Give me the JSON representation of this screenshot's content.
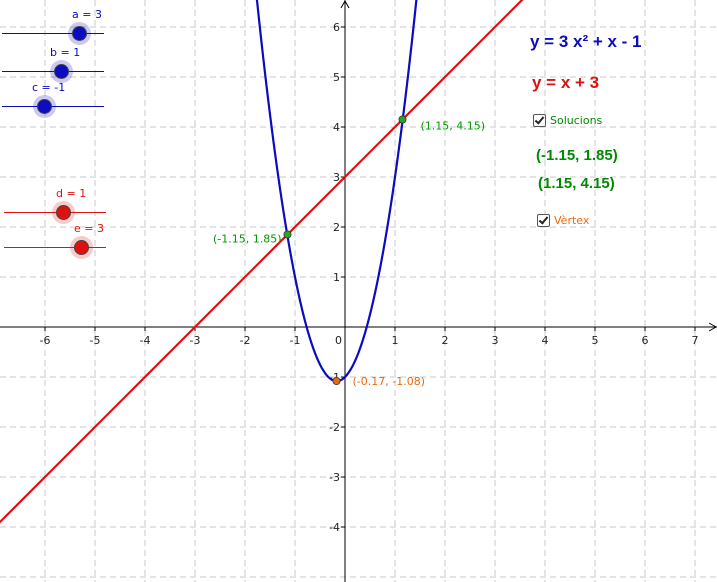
{
  "colors": {
    "blue": "#0b0bbf",
    "red": "#dd1111",
    "green": "#009900",
    "orange": "#e86a10",
    "grid": "#c8c8c8",
    "axis": "#000000"
  },
  "sliders": [
    {
      "label": "a = 3",
      "value": 3,
      "min": -5,
      "max": 5,
      "color": "blue"
    },
    {
      "label": "b = 1",
      "value": 1,
      "min": -5,
      "max": 5,
      "color": "blue"
    },
    {
      "label": "c = -1",
      "value": -1,
      "min": -5,
      "max": 5,
      "color": "blue"
    },
    {
      "label": "d = 1",
      "value": 1,
      "min": -5,
      "max": 5,
      "color": "red"
    },
    {
      "label": "e = 3",
      "value": 3,
      "min": -5,
      "max": 5,
      "color": "red"
    }
  ],
  "equations": {
    "parabola": "y = 3 x² + x - 1",
    "line": "y = x + 3"
  },
  "checkboxes": {
    "solutions": {
      "label": "Solucions",
      "checked": true
    },
    "vertex": {
      "label": "Vèrtex",
      "checked": true
    }
  },
  "solutions": [
    "(-1.15, 1.85)",
    "(1.15, 4.15)"
  ],
  "points": {
    "left_intersection": {
      "x": -1.15,
      "y": 1.85,
      "label": "(-1.15, 1.85)"
    },
    "right_intersection": {
      "x": 1.15,
      "y": 4.15,
      "label": "(1.15, 4.15)"
    },
    "vertex": {
      "x": -0.17,
      "y": -1.08,
      "label": "(-0.17, -1.08)"
    }
  },
  "axes": {
    "x_ticks": [
      "-6",
      "-5",
      "-4",
      "-3",
      "-2",
      "-1",
      "0",
      "1",
      "2",
      "3",
      "4",
      "5",
      "6",
      "7"
    ],
    "y_ticks": [
      "6",
      "5",
      "4",
      "3",
      "2",
      "1",
      "-1",
      "-2",
      "-3",
      "-4"
    ],
    "x_range": [
      -6.9,
      7.4
    ],
    "y_range": [
      -5,
      6.5
    ]
  },
  "functions": {
    "parabola": {
      "a": 3,
      "b": 1,
      "c": -1
    },
    "line": {
      "m": 1,
      "n": 3
    }
  }
}
